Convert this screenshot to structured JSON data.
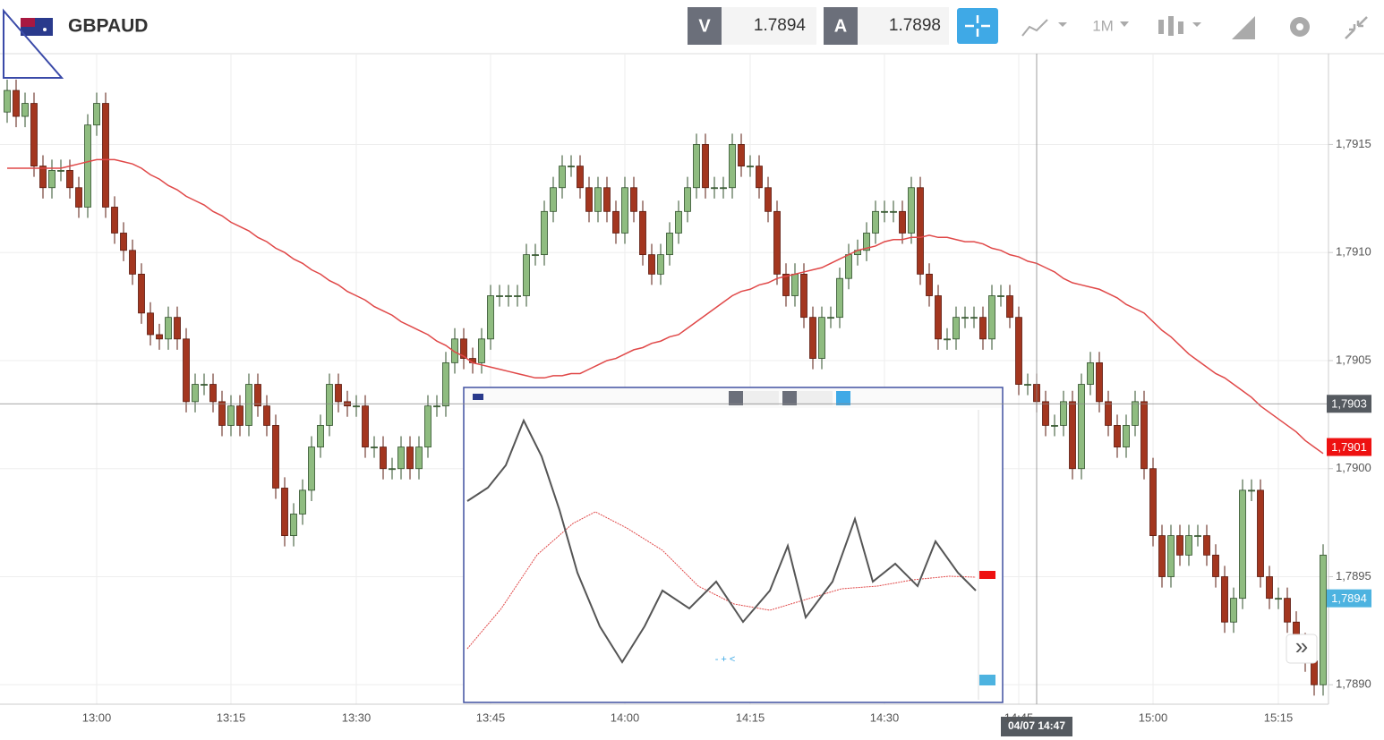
{
  "ui": {
    "symbol": "GBPAUD",
    "sell_label": "V",
    "sell_price": "1.7894",
    "buy_label": "A",
    "buy_price": "1.7898",
    "timeframe": "1M",
    "expand": "»"
  },
  "chart_data": {
    "type": "candlestick",
    "categories": [
      null,
      null,
      null,
      null,
      null,
      null,
      null,
      null,
      null,
      null,
      "13:00",
      null,
      null,
      null,
      null,
      null,
      null,
      null,
      null,
      null,
      null,
      null,
      null,
      null,
      null,
      "13:15",
      null,
      null,
      null,
      null,
      null,
      null,
      null,
      null,
      null,
      null,
      null,
      null,
      null,
      "13:30",
      null,
      null,
      null,
      null,
      null,
      null,
      null,
      null,
      null,
      null,
      null,
      null,
      null,
      null,
      "13:45",
      null,
      null,
      null,
      null,
      null,
      null,
      null,
      null,
      null,
      null,
      null,
      null,
      null,
      null,
      "14:00",
      null,
      null,
      null,
      null,
      null,
      null,
      null,
      null,
      null,
      null,
      null,
      null,
      null,
      "14:15",
      null,
      null,
      null,
      null,
      null,
      null,
      null,
      null,
      null,
      null,
      null,
      null,
      null,
      null,
      "14:30",
      null,
      null,
      null,
      null,
      null,
      null,
      null,
      null,
      null,
      null,
      null,
      null,
      null,
      null,
      "14:45",
      null,
      null,
      null,
      null,
      null,
      null,
      null,
      null,
      null,
      null,
      null,
      null,
      null,
      null,
      "15:00",
      null,
      null,
      null,
      null,
      null,
      null,
      null,
      null,
      null,
      null,
      null,
      null,
      null,
      "15:15",
      null,
      null,
      null,
      null,
      null
    ],
    "open": [
      1.79165,
      1.79175,
      1.79163,
      1.79169,
      1.7914,
      1.7913,
      1.79138,
      1.79138,
      1.7913,
      1.79121,
      1.79159,
      1.79169,
      1.79121,
      1.79109,
      1.79101,
      1.7909,
      1.79072,
      1.79062,
      1.7906,
      1.7907,
      1.7906,
      1.79031,
      1.79039,
      1.79039,
      1.79031,
      1.7902,
      1.79029,
      1.7902,
      1.79039,
      1.79029,
      1.7902,
      1.78991,
      1.78969,
      1.78979,
      1.7899,
      1.7901,
      1.7902,
      1.79039,
      1.79031,
      1.79029,
      1.79029,
      1.7901,
      1.7901,
      1.79,
      1.79,
      1.7901,
      1.79,
      1.7901,
      1.79029,
      1.79029,
      1.79049,
      1.7906,
      1.79051,
      1.79049,
      1.7906,
      1.7908,
      1.7908,
      1.7908,
      1.7908,
      1.79099,
      1.79099,
      1.79119,
      1.7913,
      1.7914,
      1.7914,
      1.7913,
      1.79119,
      1.7913,
      1.79119,
      1.79109,
      1.7913,
      1.79119,
      1.79099,
      1.7909,
      1.79099,
      1.79109,
      1.79119,
      1.7913,
      1.7915,
      1.7913,
      1.7913,
      1.7913,
      1.7915,
      1.7914,
      1.7914,
      1.7913,
      1.79119,
      1.7909,
      1.7908,
      1.7909,
      1.7907,
      1.79051,
      1.7907,
      1.7907,
      1.79088,
      1.79099,
      1.79101,
      1.79109,
      1.79119,
      1.79119,
      1.79119,
      1.79109,
      1.7913,
      1.7909,
      1.7908,
      1.7906,
      1.7906,
      1.7907,
      1.7907,
      1.7907,
      1.7906,
      1.7908,
      1.7908,
      1.7907,
      1.79039,
      1.79039,
      1.79031,
      1.7902,
      1.7902,
      1.79031,
      1.79,
      1.79039,
      1.79049,
      1.79031,
      1.7902,
      1.7901,
      1.7902,
      1.79031,
      1.79,
      1.78969,
      1.7895,
      1.78969,
      1.7896,
      1.78969,
      1.78969,
      1.7896,
      1.7895,
      1.78929,
      1.7894,
      1.7899,
      1.7899,
      1.7895,
      1.7894,
      1.7894,
      1.78929,
      1.78919,
      1.78911,
      1.789
    ],
    "close": [
      1.79175,
      1.79163,
      1.79169,
      1.7914,
      1.7913,
      1.79138,
      1.79138,
      1.7913,
      1.79121,
      1.79159,
      1.79169,
      1.79121,
      1.79109,
      1.79101,
      1.7909,
      1.79072,
      1.79062,
      1.7906,
      1.7907,
      1.7906,
      1.79031,
      1.79039,
      1.79039,
      1.79031,
      1.7902,
      1.79029,
      1.7902,
      1.79039,
      1.79029,
      1.7902,
      1.78991,
      1.78969,
      1.78979,
      1.7899,
      1.7901,
      1.7902,
      1.79039,
      1.79031,
      1.79029,
      1.79029,
      1.7901,
      1.7901,
      1.79,
      1.79,
      1.7901,
      1.79,
      1.7901,
      1.79029,
      1.79029,
      1.79049,
      1.7906,
      1.79051,
      1.79049,
      1.7906,
      1.7908,
      1.7908,
      1.7908,
      1.7908,
      1.79099,
      1.79099,
      1.79119,
      1.7913,
      1.7914,
      1.7914,
      1.7913,
      1.79119,
      1.7913,
      1.79119,
      1.79109,
      1.7913,
      1.79119,
      1.79099,
      1.7909,
      1.79099,
      1.79109,
      1.79119,
      1.7913,
      1.7915,
      1.7913,
      1.7913,
      1.7913,
      1.7915,
      1.7914,
      1.7914,
      1.7913,
      1.79119,
      1.7909,
      1.7908,
      1.7909,
      1.7907,
      1.79051,
      1.7907,
      1.7907,
      1.79088,
      1.79099,
      1.79101,
      1.79109,
      1.79119,
      1.79119,
      1.79119,
      1.79109,
      1.7913,
      1.7909,
      1.7908,
      1.7906,
      1.7906,
      1.7907,
      1.7907,
      1.7907,
      1.7906,
      1.7908,
      1.7908,
      1.7907,
      1.79039,
      1.79039,
      1.79031,
      1.7902,
      1.7902,
      1.79031,
      1.79,
      1.79039,
      1.79049,
      1.79031,
      1.7902,
      1.7901,
      1.7902,
      1.79031,
      1.79,
      1.78969,
      1.7895,
      1.78969,
      1.7896,
      1.78969,
      1.78969,
      1.7896,
      1.7895,
      1.78929,
      1.7894,
      1.7899,
      1.7899,
      1.7895,
      1.7894,
      1.7894,
      1.78929,
      1.78919,
      1.78911,
      1.789,
      1.7896
    ],
    "high": [
      1.7918,
      1.7918,
      1.79174,
      1.79174,
      1.79145,
      1.79143,
      1.79143,
      1.79143,
      1.79135,
      1.79164,
      1.79174,
      1.79174,
      1.79126,
      1.79114,
      1.79106,
      1.79095,
      1.79077,
      1.79067,
      1.79075,
      1.79075,
      1.79065,
      1.79044,
      1.79044,
      1.79044,
      1.79036,
      1.79034,
      1.79034,
      1.79044,
      1.79044,
      1.79034,
      1.79025,
      1.78996,
      1.78984,
      1.78995,
      1.79015,
      1.79025,
      1.79044,
      1.79044,
      1.79036,
      1.79034,
      1.79034,
      1.79015,
      1.79015,
      1.79005,
      1.79015,
      1.79015,
      1.79015,
      1.79034,
      1.79034,
      1.79054,
      1.79065,
      1.79065,
      1.79056,
      1.79065,
      1.79085,
      1.79085,
      1.79085,
      1.79085,
      1.79104,
      1.79104,
      1.79124,
      1.79135,
      1.79145,
      1.79145,
      1.79145,
      1.79135,
      1.79135,
      1.79135,
      1.79124,
      1.79135,
      1.79135,
      1.79124,
      1.79104,
      1.79104,
      1.79114,
      1.79124,
      1.79135,
      1.79155,
      1.79155,
      1.79135,
      1.79135,
      1.79155,
      1.79155,
      1.79145,
      1.79145,
      1.79135,
      1.79124,
      1.79095,
      1.79095,
      1.79095,
      1.79075,
      1.79075,
      1.79075,
      1.79093,
      1.79104,
      1.79106,
      1.79114,
      1.79124,
      1.79124,
      1.79124,
      1.79124,
      1.79135,
      1.79135,
      1.79095,
      1.79085,
      1.79065,
      1.79075,
      1.79075,
      1.79075,
      1.79075,
      1.79085,
      1.79085,
      1.79085,
      1.79075,
      1.79044,
      1.79044,
      1.79036,
      1.79025,
      1.79036,
      1.79036,
      1.79044,
      1.79054,
      1.79054,
      1.79036,
      1.79025,
      1.79025,
      1.79036,
      1.79036,
      1.79005,
      1.78974,
      1.78974,
      1.78974,
      1.78974,
      1.78974,
      1.78974,
      1.78965,
      1.78955,
      1.78945,
      1.78995,
      1.78995,
      1.78995,
      1.78955,
      1.78945,
      1.78945,
      1.78934,
      1.78924,
      1.78916,
      1.78965
    ],
    "low": [
      1.7916,
      1.79158,
      1.79158,
      1.79135,
      1.79125,
      1.79125,
      1.79133,
      1.79125,
      1.79116,
      1.79116,
      1.79154,
      1.79116,
      1.79104,
      1.79096,
      1.79085,
      1.79067,
      1.79057,
      1.79055,
      1.79055,
      1.79055,
      1.79026,
      1.79026,
      1.79034,
      1.79026,
      1.79015,
      1.79015,
      1.79015,
      1.79015,
      1.79024,
      1.79015,
      1.78986,
      1.78964,
      1.78964,
      1.78974,
      1.78985,
      1.79005,
      1.79015,
      1.79026,
      1.79024,
      1.79024,
      1.79005,
      1.79005,
      1.78995,
      1.78995,
      1.78995,
      1.78995,
      1.78995,
      1.79005,
      1.79024,
      1.79024,
      1.79044,
      1.79046,
      1.79044,
      1.79044,
      1.79055,
      1.79075,
      1.79075,
      1.79075,
      1.79075,
      1.79094,
      1.79094,
      1.79114,
      1.79125,
      1.79135,
      1.79125,
      1.79114,
      1.79114,
      1.79114,
      1.79104,
      1.79104,
      1.79114,
      1.79094,
      1.79085,
      1.79085,
      1.79094,
      1.79104,
      1.79114,
      1.79125,
      1.79125,
      1.79125,
      1.79125,
      1.79125,
      1.79135,
      1.79135,
      1.79125,
      1.79114,
      1.79085,
      1.79075,
      1.79075,
      1.79065,
      1.79046,
      1.79046,
      1.79065,
      1.79065,
      1.79083,
      1.79094,
      1.79096,
      1.79104,
      1.79114,
      1.79114,
      1.79104,
      1.79104,
      1.79085,
      1.79075,
      1.79055,
      1.79055,
      1.79055,
      1.79065,
      1.79065,
      1.79055,
      1.79055,
      1.79075,
      1.79065,
      1.79034,
      1.79034,
      1.79026,
      1.79015,
      1.79015,
      1.79015,
      1.78995,
      1.78995,
      1.79034,
      1.79026,
      1.79015,
      1.79005,
      1.79005,
      1.79015,
      1.78995,
      1.78964,
      1.78945,
      1.78945,
      1.78955,
      1.78955,
      1.78964,
      1.78955,
      1.78945,
      1.78924,
      1.78924,
      1.78935,
      1.78985,
      1.78945,
      1.78935,
      1.78935,
      1.78924,
      1.78914,
      1.78906,
      1.78895,
      1.78895
    ],
    "up_color": "#8fbc80",
    "down_color": "#a3361f",
    "overlays": [
      {
        "color": "#e04848",
        "values": [
          1.79139,
          1.79139,
          1.79139,
          1.79139,
          1.79139,
          1.79139,
          1.79139,
          1.7914,
          1.79141,
          1.79142,
          1.79143,
          1.79143,
          1.79143,
          1.79142,
          1.79141,
          1.79139,
          1.79136,
          1.79134,
          1.79131,
          1.79129,
          1.79126,
          1.79124,
          1.79122,
          1.79119,
          1.79117,
          1.79114,
          1.79112,
          1.7911,
          1.79107,
          1.79105,
          1.79102,
          1.791,
          1.79097,
          1.79095,
          1.79092,
          1.7909,
          1.79087,
          1.79085,
          1.79082,
          1.7908,
          1.79078,
          1.79075,
          1.79073,
          1.79071,
          1.79068,
          1.79066,
          1.79064,
          1.79062,
          1.79059,
          1.79057,
          1.79054,
          1.79052,
          1.79049,
          1.79048,
          1.79047,
          1.79046,
          1.79045,
          1.79044,
          1.79043,
          1.79042,
          1.79042,
          1.79043,
          1.79043,
          1.79044,
          1.79044,
          1.79046,
          1.79048,
          1.7905,
          1.79051,
          1.79053,
          1.79055,
          1.79056,
          1.79058,
          1.79059,
          1.79061,
          1.79062,
          1.79065,
          1.79068,
          1.79071,
          1.79074,
          1.79077,
          1.7908,
          1.79082,
          1.79083,
          1.79085,
          1.79086,
          1.79088,
          1.79089,
          1.7909,
          1.79091,
          1.79092,
          1.79093,
          1.79095,
          1.79097,
          1.79099,
          1.79101,
          1.79102,
          1.79103,
          1.79105,
          1.79106,
          1.79106,
          1.79107,
          1.79107,
          1.79108,
          1.79107,
          1.79107,
          1.79106,
          1.79105,
          1.79105,
          1.79104,
          1.79102,
          1.79101,
          1.79099,
          1.79098,
          1.79096,
          1.79095,
          1.79093,
          1.79091,
          1.79088,
          1.79086,
          1.79085,
          1.79084,
          1.79083,
          1.79081,
          1.79079,
          1.79076,
          1.79074,
          1.79072,
          1.79068,
          1.79064,
          1.79061,
          1.79057,
          1.79053,
          1.7905,
          1.79047,
          1.79044,
          1.79042,
          1.79039,
          1.79036,
          1.79033,
          1.79029,
          1.79026,
          1.79023,
          1.7902,
          1.79017,
          1.79013,
          1.7901,
          1.79007
        ]
      }
    ],
    "ylim": [
      1.78891,
      1.79192
    ],
    "yticks": [
      {
        "value": 1.789,
        "label": "1,7890"
      },
      {
        "value": 1.7895,
        "label": "1,7895"
      },
      {
        "value": 1.79,
        "label": "1,7900"
      },
      {
        "value": 1.7905,
        "label": "1,7905"
      },
      {
        "value": 1.791,
        "label": "1,7910"
      },
      {
        "value": 1.7915,
        "label": "1,7915"
      }
    ],
    "grid": true,
    "price_tags": [
      {
        "value": 1.7903,
        "label": "1,7903",
        "color": "#555a60"
      },
      {
        "value": 1.7901,
        "label": "1,7901",
        "color": "#ee1111"
      },
      {
        "value": 1.7894,
        "label": "1,7894",
        "color": "#4db3e0"
      }
    ],
    "crosshair_time": "04/07 14:47"
  }
}
